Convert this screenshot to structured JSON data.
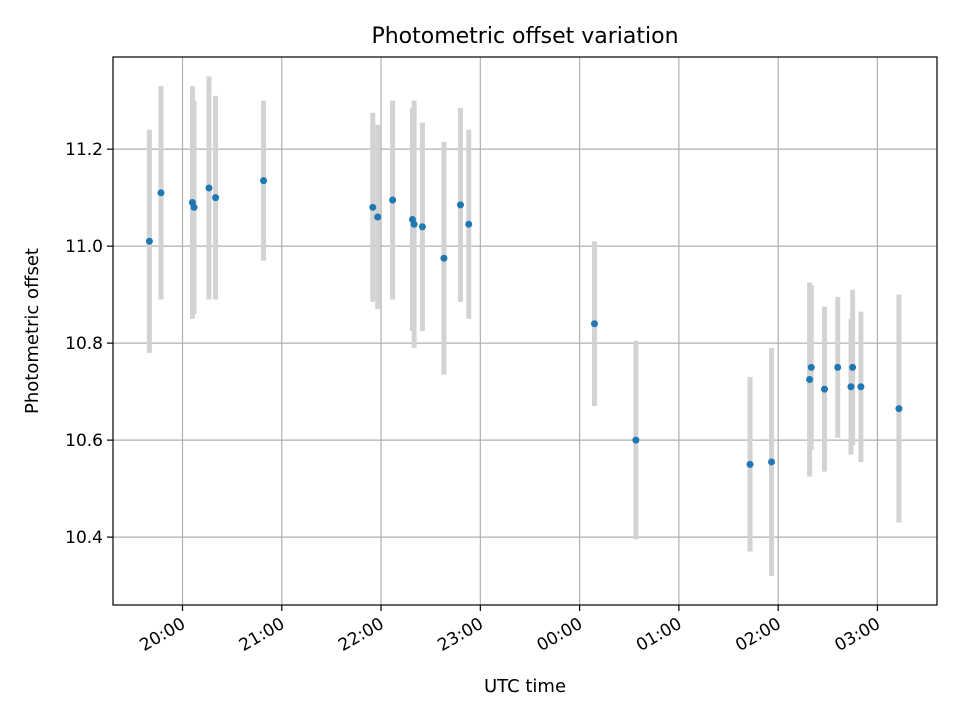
{
  "chart_data": {
    "type": "scatter",
    "title": "Photometric offset variation",
    "xlabel": "UTC time",
    "ylabel": "Photometric offset",
    "x_ticks": [
      "20:00",
      "21:00",
      "22:00",
      "23:00",
      "00:00",
      "01:00",
      "02:00",
      "03:00"
    ],
    "x_tick_times": [
      "2000-01-01T20:00",
      "2000-01-01T21:00",
      "2000-01-01T22:00",
      "2000-01-01T23:00",
      "2000-01-02T00:00",
      "2000-01-02T01:00",
      "2000-01-02T02:00",
      "2000-01-02T03:00"
    ],
    "xlim": [
      "2000-01-01T19:18",
      "2000-01-02T03:36"
    ],
    "y_ticks": [
      "10.4",
      "10.6",
      "10.8",
      "11.0",
      "11.2"
    ],
    "ylim": [
      10.26,
      11.39
    ],
    "grid": true,
    "colors": {
      "marker": "#1f77b4",
      "errorbar": "#d3d3d3"
    },
    "series": [
      {
        "points": [
          {
            "x": "2000-01-01T19:40",
            "y": 11.01,
            "err": 0.23
          },
          {
            "x": "2000-01-01T19:47",
            "y": 11.11,
            "err": 0.22
          },
          {
            "x": "2000-01-01T20:06",
            "y": 11.09,
            "err": 0.24
          },
          {
            "x": "2000-01-01T20:07",
            "y": 11.08,
            "err": 0.22
          },
          {
            "x": "2000-01-01T20:16",
            "y": 11.12,
            "err": 0.23
          },
          {
            "x": "2000-01-01T20:20",
            "y": 11.1,
            "err": 0.21
          },
          {
            "x": "2000-01-01T20:49",
            "y": 11.135,
            "err": 0.165
          },
          {
            "x": "2000-01-01T21:55",
            "y": 11.08,
            "err": 0.195
          },
          {
            "x": "2000-01-01T21:58",
            "y": 11.06,
            "err": 0.19
          },
          {
            "x": "2000-01-01T22:07",
            "y": 11.095,
            "err": 0.205
          },
          {
            "x": "2000-01-01T22:19",
            "y": 11.055,
            "err": 0.23
          },
          {
            "x": "2000-01-01T22:20",
            "y": 11.045,
            "err": 0.255
          },
          {
            "x": "2000-01-01T22:25",
            "y": 11.04,
            "err": 0.215
          },
          {
            "x": "2000-01-01T22:38",
            "y": 10.975,
            "err": 0.24
          },
          {
            "x": "2000-01-01T22:48",
            "y": 11.085,
            "err": 0.2
          },
          {
            "x": "2000-01-01T22:53",
            "y": 11.045,
            "err": 0.195
          },
          {
            "x": "2000-01-02T00:09",
            "y": 10.84,
            "err": 0.17
          },
          {
            "x": "2000-01-02T00:34",
            "y": 10.6,
            "err": 0.205
          },
          {
            "x": "2000-01-02T01:43",
            "y": 10.55,
            "err": 0.18
          },
          {
            "x": "2000-01-02T01:56",
            "y": 10.555,
            "err": 0.235
          },
          {
            "x": "2000-01-02T02:19",
            "y": 10.725,
            "err": 0.2
          },
          {
            "x": "2000-01-02T02:20",
            "y": 10.75,
            "err": 0.17
          },
          {
            "x": "2000-01-02T02:28",
            "y": 10.705,
            "err": 0.17
          },
          {
            "x": "2000-01-02T02:36",
            "y": 10.75,
            "err": 0.145
          },
          {
            "x": "2000-01-02T02:44",
            "y": 10.71,
            "err": 0.14
          },
          {
            "x": "2000-01-02T02:45",
            "y": 10.75,
            "err": 0.16
          },
          {
            "x": "2000-01-02T02:50",
            "y": 10.71,
            "err": 0.155
          },
          {
            "x": "2000-01-02T03:13",
            "y": 10.665,
            "err": 0.235
          }
        ]
      }
    ]
  }
}
